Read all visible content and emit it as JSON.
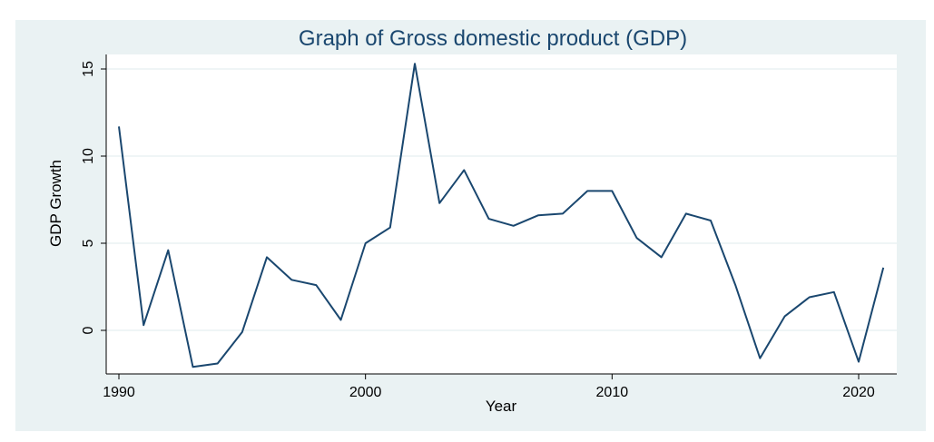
{
  "colors": {
    "outer_bg": "#eaf2f3",
    "plot_bg": "#ffffff",
    "line": "#1a476f",
    "title": "#1a476f"
  },
  "chart_data": {
    "type": "line",
    "title": "Graph of Gross domestic product (GDP)",
    "xlabel": "Year",
    "ylabel": "GDP Growth",
    "xlim": [
      1990,
      2021
    ],
    "ylim": [
      -2.2,
      15.7
    ],
    "xticks": [
      1990,
      2000,
      2010,
      2020
    ],
    "yticks": [
      0,
      5,
      10,
      15
    ],
    "grid": true,
    "legend": "none",
    "series": [
      {
        "x": [
          1990,
          1991,
          1992,
          1993,
          1994,
          1995,
          1996,
          1997,
          1998,
          1999,
          2000,
          2001,
          2002,
          2003,
          2004,
          2005,
          2006,
          2007,
          2008,
          2009,
          2010,
          2011,
          2012,
          2013,
          2014,
          2015,
          2016,
          2017,
          2018,
          2019,
          2020,
          2021
        ],
        "values": [
          11.7,
          0.3,
          4.6,
          -2.1,
          -1.9,
          -0.1,
          4.2,
          2.9,
          2.6,
          0.6,
          5.0,
          5.9,
          15.3,
          7.3,
          9.2,
          6.4,
          6.0,
          6.6,
          6.7,
          8.0,
          8.0,
          5.3,
          4.2,
          6.7,
          6.3,
          2.6,
          -1.6,
          0.8,
          1.9,
          2.2,
          -1.8,
          3.6
        ]
      }
    ]
  }
}
